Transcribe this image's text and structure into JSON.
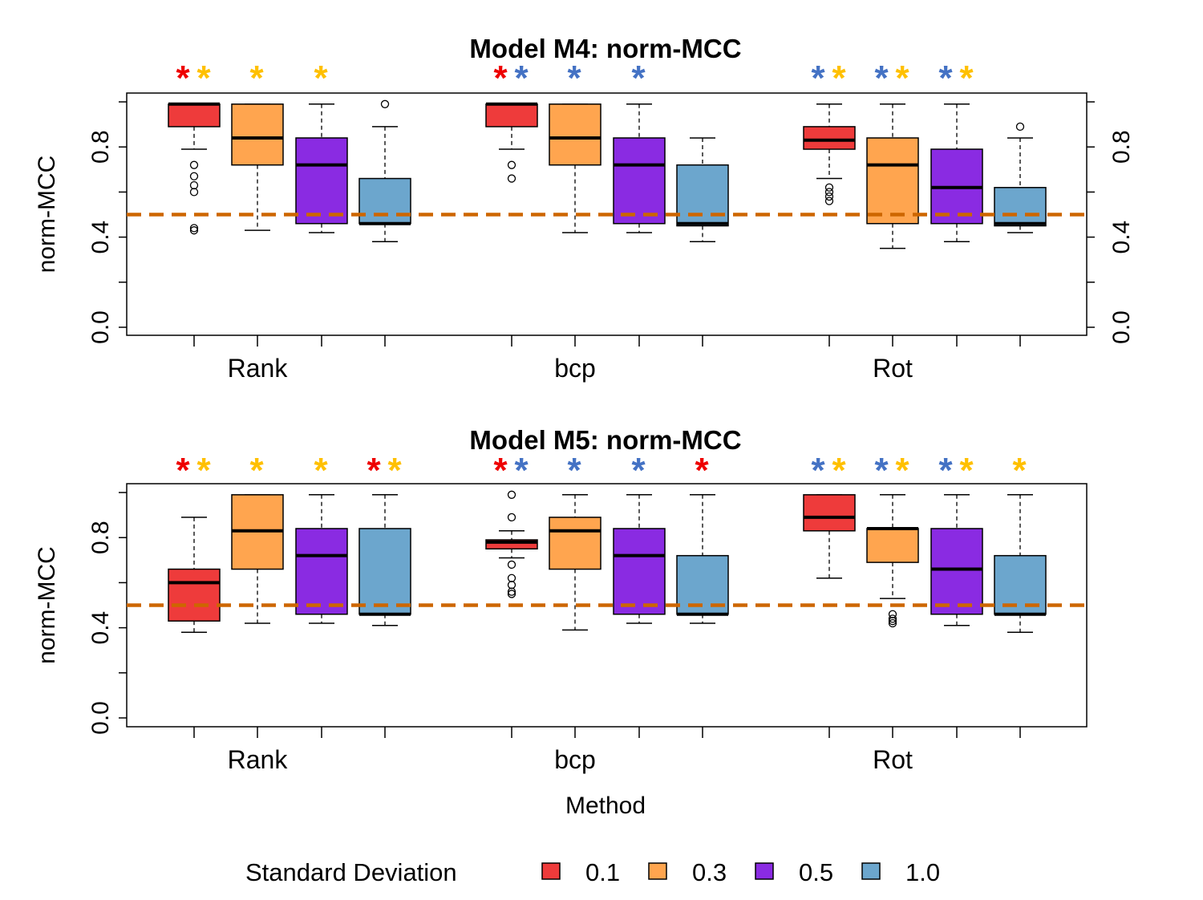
{
  "legend": {
    "title": "Standard Deviation",
    "entries": [
      "0.1",
      "0.3",
      "0.5",
      "1.0"
    ]
  },
  "xlabel": "Method",
  "colors": {
    "sd_fill": [
      "#EE3B3B",
      "#FFA54F",
      "#8A2BE2",
      "#6CA6CD"
    ],
    "reference_line": "#CD6600",
    "star_red": "#EE0000",
    "star_blue": "#4472C4",
    "star_gold": "#FFC000"
  },
  "chart_data": [
    {
      "type": "box",
      "title": "Model M4: norm-MCC",
      "ylabel": "norm-MCC",
      "right_axis": true,
      "ylim": [
        0,
        1
      ],
      "yticks": [
        "0.0",
        "0.4",
        "0.8"
      ],
      "reference_line": 0.5,
      "groups": [
        "Rank",
        "bcp",
        "Rot"
      ],
      "series_names": [
        "0.1",
        "0.3",
        "0.5",
        "1.0"
      ],
      "boxes": [
        [
          {
            "low": 0.79,
            "q1": 0.89,
            "med": 0.99,
            "q3": 0.99,
            "high": 0.99,
            "outliers": [
              0.72,
              0.67,
              0.63,
              0.6,
              0.44,
              0.43
            ]
          },
          {
            "low": 0.43,
            "q1": 0.72,
            "med": 0.84,
            "q3": 0.99,
            "high": 0.99,
            "outliers": []
          },
          {
            "low": 0.42,
            "q1": 0.46,
            "med": 0.72,
            "q3": 0.84,
            "high": 0.99,
            "outliers": []
          },
          {
            "low": 0.38,
            "q1": 0.46,
            "med": 0.46,
            "q3": 0.66,
            "high": 0.89,
            "outliers": [
              0.99
            ]
          }
        ],
        [
          {
            "low": 0.79,
            "q1": 0.89,
            "med": 0.99,
            "q3": 0.99,
            "high": 0.99,
            "outliers": [
              0.72,
              0.66
            ]
          },
          {
            "low": 0.42,
            "q1": 0.72,
            "med": 0.84,
            "q3": 0.99,
            "high": 0.99,
            "outliers": []
          },
          {
            "low": 0.42,
            "q1": 0.46,
            "med": 0.72,
            "q3": 0.84,
            "high": 0.99,
            "outliers": []
          },
          {
            "low": 0.38,
            "q1": 0.45,
            "med": 0.46,
            "q3": 0.72,
            "high": 0.84,
            "outliers": []
          }
        ],
        [
          {
            "low": 0.66,
            "q1": 0.79,
            "med": 0.83,
            "q3": 0.89,
            "high": 0.99,
            "outliers": [
              0.62,
              0.6,
              0.58,
              0.56
            ]
          },
          {
            "low": 0.35,
            "q1": 0.46,
            "med": 0.72,
            "q3": 0.84,
            "high": 0.99,
            "outliers": []
          },
          {
            "low": 0.38,
            "q1": 0.46,
            "med": 0.62,
            "q3": 0.79,
            "high": 0.99,
            "outliers": []
          },
          {
            "low": 0.42,
            "q1": 0.45,
            "med": 0.46,
            "q3": 0.62,
            "high": 0.84,
            "outliers": [
              0.89
            ]
          }
        ]
      ],
      "stars": [
        [
          [
            "red",
            "gold"
          ],
          [
            "gold"
          ],
          [
            "gold"
          ],
          []
        ],
        [
          [
            "red",
            "blue"
          ],
          [
            "blue"
          ],
          [
            "blue"
          ],
          []
        ],
        [
          [
            "blue",
            "gold"
          ],
          [
            "blue",
            "gold"
          ],
          [
            "blue",
            "gold"
          ],
          []
        ]
      ]
    },
    {
      "type": "box",
      "title": "Model M5: norm-MCC",
      "ylabel": "norm-MCC",
      "right_axis": false,
      "ylim": [
        0,
        1
      ],
      "yticks": [
        "0.0",
        "0.4",
        "0.8"
      ],
      "reference_line": 0.5,
      "groups": [
        "Rank",
        "bcp",
        "Rot"
      ],
      "series_names": [
        "0.1",
        "0.3",
        "0.5",
        "1.0"
      ],
      "boxes": [
        [
          {
            "low": 0.38,
            "q1": 0.43,
            "med": 0.6,
            "q3": 0.66,
            "high": 0.89,
            "outliers": []
          },
          {
            "low": 0.42,
            "q1": 0.66,
            "med": 0.83,
            "q3": 0.99,
            "high": 0.99,
            "outliers": []
          },
          {
            "low": 0.42,
            "q1": 0.46,
            "med": 0.72,
            "q3": 0.84,
            "high": 0.99,
            "outliers": []
          },
          {
            "low": 0.41,
            "q1": 0.46,
            "med": 0.46,
            "q3": 0.84,
            "high": 0.99,
            "outliers": []
          }
        ],
        [
          {
            "low": 0.71,
            "q1": 0.75,
            "med": 0.78,
            "q3": 0.79,
            "high": 0.83,
            "outliers": [
              0.99,
              0.89,
              0.68,
              0.62,
              0.59,
              0.56,
              0.55
            ]
          },
          {
            "low": 0.39,
            "q1": 0.66,
            "med": 0.83,
            "q3": 0.89,
            "high": 0.99,
            "outliers": []
          },
          {
            "low": 0.42,
            "q1": 0.46,
            "med": 0.72,
            "q3": 0.84,
            "high": 0.99,
            "outliers": []
          },
          {
            "low": 0.42,
            "q1": 0.46,
            "med": 0.46,
            "q3": 0.72,
            "high": 0.99,
            "outliers": []
          }
        ],
        [
          {
            "low": 0.62,
            "q1": 0.83,
            "med": 0.89,
            "q3": 0.99,
            "high": 0.99,
            "outliers": []
          },
          {
            "low": 0.53,
            "q1": 0.69,
            "med": 0.84,
            "q3": 0.84,
            "high": 0.99,
            "outliers": [
              0.46,
              0.44,
              0.43,
              0.42
            ]
          },
          {
            "low": 0.41,
            "q1": 0.46,
            "med": 0.66,
            "q3": 0.84,
            "high": 0.99,
            "outliers": []
          },
          {
            "low": 0.38,
            "q1": 0.46,
            "med": 0.46,
            "q3": 0.72,
            "high": 0.99,
            "outliers": []
          }
        ]
      ],
      "stars": [
        [
          [
            "red",
            "gold"
          ],
          [
            "gold"
          ],
          [
            "gold"
          ],
          [
            "red",
            "gold"
          ]
        ],
        [
          [
            "red",
            "blue"
          ],
          [
            "blue"
          ],
          [
            "blue"
          ],
          [
            "red"
          ]
        ],
        [
          [
            "blue",
            "gold"
          ],
          [
            "blue",
            "gold"
          ],
          [
            "blue",
            "gold"
          ],
          [
            "gold"
          ]
        ]
      ]
    }
  ]
}
